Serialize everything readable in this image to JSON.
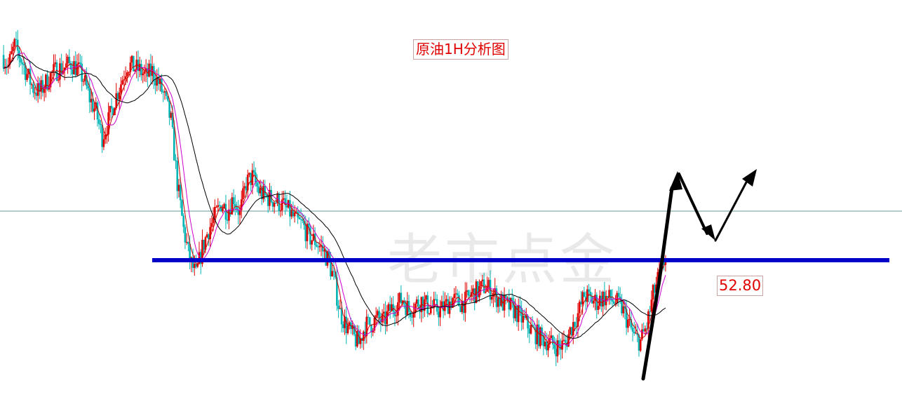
{
  "chart_data": {
    "type": "candlestick",
    "title": "原油1H分析图",
    "watermark": "老市点金",
    "key_level": {
      "label": "52.80",
      "value": 52.8,
      "color": "#0000c8"
    },
    "reference_line_color": "#6a9a9a",
    "projection_arrow_color": "#000000",
    "ma_colors": {
      "fast": "#cc0000",
      "mid": "#cc00cc",
      "slow": "#000000"
    },
    "candle_colors": {
      "up": "#e00000",
      "down": "#00b4b4"
    },
    "closes": [
      55.46,
      55.32,
      55.58,
      55.41,
      55.21,
      55.03,
      54.98,
      55.1,
      55.22,
      55.28,
      55.3,
      55.35,
      55.29,
      55.15,
      54.9,
      54.72,
      54.4,
      54.6,
      54.88,
      55.1,
      55.34,
      55.3,
      55.26,
      55.18,
      55.25,
      55.1,
      54.9,
      54.6,
      53.8,
      53.2,
      52.8,
      52.6,
      52.96,
      53.2,
      53.36,
      53.54,
      53.44,
      53.62,
      53.4,
      53.8,
      53.88,
      53.7,
      53.62,
      53.6,
      53.56,
      53.5,
      53.42,
      53.3,
      53.26,
      53.1,
      53.05,
      52.96,
      52.82,
      52.56,
      52.12,
      51.95,
      51.82,
      51.72,
      51.95,
      51.98,
      52.04,
      52.0,
      52.16,
      52.22,
      52.3,
      52.15,
      52.22,
      52.28,
      52.2,
      52.18,
      52.15,
      52.22,
      52.3,
      52.24,
      52.26,
      52.36,
      52.4,
      52.46,
      52.42,
      52.32,
      52.24,
      52.2,
      52.14,
      52.04,
      51.95,
      51.86,
      51.8,
      51.76,
      51.7,
      51.68,
      51.72,
      51.94,
      52.1,
      52.35,
      52.29,
      52.26,
      52.32,
      52.3,
      52.26,
      52.18,
      52.0,
      51.8,
      51.75,
      51.95,
      52.35,
      52.6,
      52.84
    ]
  }
}
